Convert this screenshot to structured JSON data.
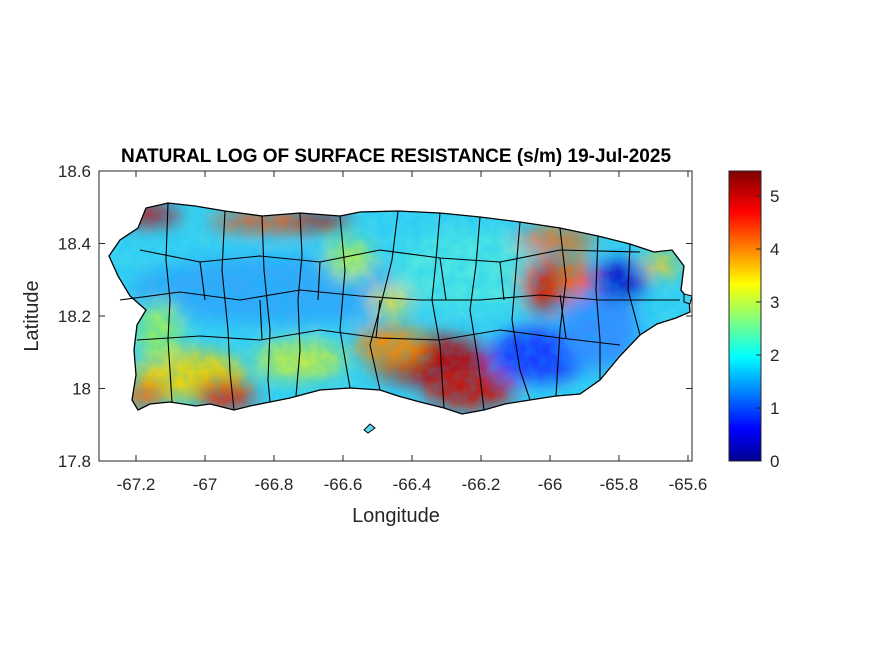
{
  "map": {
    "title": "NATURAL LOG OF SURFACE RESISTANCE (s/m) 19-Jul-2025",
    "x_axis": {
      "label": "Longitude",
      "range": [
        -67.3,
        -65.58
      ],
      "ticks": [
        -67.2,
        -67,
        -66.8,
        -66.6,
        -66.4,
        -66.2,
        -66,
        -65.8,
        -65.6
      ],
      "tick_labels": [
        "-67.2",
        "-67",
        "-66.8",
        "-66.6",
        "-66.4",
        "-66.2",
        "-66",
        "-65.8",
        "-65.6"
      ]
    },
    "y_axis": {
      "label": "Latitude",
      "range": [
        17.8,
        18.6
      ],
      "ticks": [
        17.8,
        18.0,
        18.2,
        18.4,
        18.6
      ],
      "tick_labels": [
        "17.8",
        "18",
        "18.2",
        "18.4",
        "18.6"
      ]
    },
    "colorbar": {
      "colormap": "jet",
      "range": [
        0,
        5.5
      ],
      "ticks": [
        0,
        1,
        2,
        3,
        4,
        5
      ],
      "tick_labels": [
        "0",
        "1",
        "2",
        "3",
        "4",
        "5"
      ]
    },
    "region": "Puerto Rico (municipality boundaries)"
  }
}
